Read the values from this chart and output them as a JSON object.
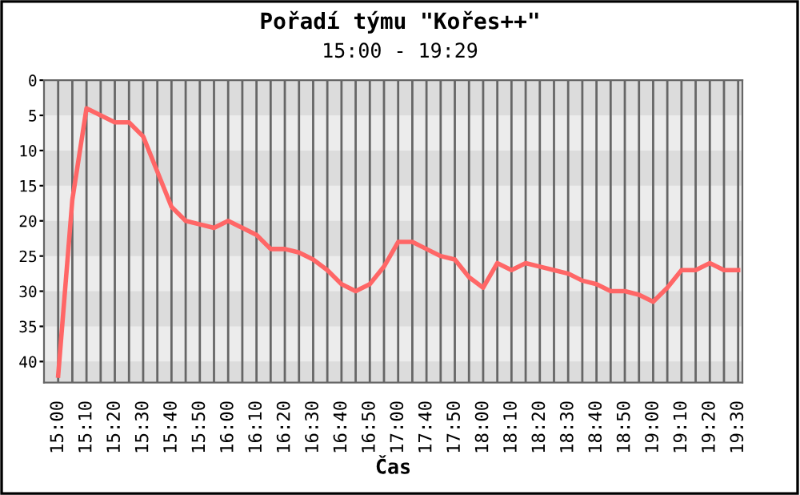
{
  "chart_data": {
    "type": "line",
    "title": "Pořadí týmu \"Kořes++\"",
    "subtitle": "15:00 - 19:29",
    "xlabel": "Čas",
    "categories": [
      "15:00",
      null,
      "15:10",
      null,
      "15:20",
      null,
      "15:30",
      null,
      "15:40",
      null,
      "15:50",
      null,
      "16:00",
      null,
      "16:10",
      null,
      "16:20",
      null,
      "16:30",
      null,
      "16:40",
      null,
      "16:50",
      null,
      "17:00",
      null,
      "17:40",
      null,
      "17:50",
      null,
      "18:00",
      null,
      "18:10",
      null,
      "18:20",
      null,
      "18:30",
      null,
      "18:40",
      null,
      "18:50",
      null,
      "19:00",
      null,
      "19:10",
      null,
      "19:20",
      null,
      "19:30"
    ],
    "series": [
      {
        "color": "#ff6666",
        "values": [
          42,
          17,
          4,
          5,
          6,
          6,
          8,
          13,
          18,
          20,
          20.5,
          21,
          20,
          21,
          22,
          24,
          24,
          24.5,
          25.5,
          27,
          29,
          30,
          29,
          26.5,
          23,
          23,
          24,
          25,
          25.5,
          28,
          29.5,
          26,
          27,
          26,
          26.5,
          27,
          27.5,
          28.5,
          29,
          30,
          30,
          30.5,
          31.5,
          29.5,
          27,
          27,
          26,
          27,
          27
        ]
      }
    ],
    "ylim": [
      43,
      0
    ],
    "yticks": [
      0,
      5,
      10,
      15,
      20,
      25,
      30,
      35,
      40
    ],
    "grid": true,
    "marker": "none",
    "line_style": "solid"
  }
}
